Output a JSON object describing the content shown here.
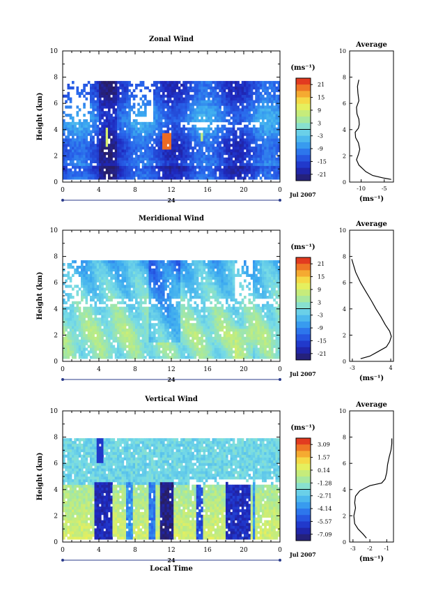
{
  "chart_data": [
    {
      "type": "heatmap",
      "title": "Zonal Wind",
      "ylabel": "Height (km)",
      "ylim": [
        0,
        10
      ],
      "yticks": [
        "0",
        "2",
        "4",
        "6",
        "8",
        "10"
      ],
      "xlim": [
        0,
        24
      ],
      "xticks": [
        "0",
        "4",
        "8",
        "12",
        "16",
        "20",
        "0"
      ],
      "day_label": "24",
      "month_label": "Jul 2007",
      "colorbar": {
        "unit": "(ms⁻¹)",
        "ticks": [
          "21",
          "15",
          "9",
          "3",
          "-3",
          "-9",
          "-15",
          "-21"
        ],
        "range": [
          -24,
          24
        ]
      },
      "profile": {
        "title": "Average",
        "xlabel": "(ms⁻¹)",
        "xticks": [
          "-10",
          "-5"
        ],
        "xlim": [
          -12.5,
          -3
        ],
        "points": [
          [
            -3.5,
            0.2
          ],
          [
            -5,
            0.3
          ],
          [
            -7.5,
            0.5
          ],
          [
            -9,
            0.8
          ],
          [
            -10.5,
            1.3
          ],
          [
            -11,
            1.7
          ],
          [
            -10.6,
            2.1
          ],
          [
            -10.3,
            2.5
          ],
          [
            -10.6,
            3.0
          ],
          [
            -11.2,
            3.4
          ],
          [
            -11.3,
            3.8
          ],
          [
            -10.6,
            4.1
          ],
          [
            -10.4,
            4.4
          ],
          [
            -10.5,
            4.8
          ],
          [
            -10.9,
            5.2
          ],
          [
            -11.0,
            5.7
          ],
          [
            -10.5,
            6.2
          ],
          [
            -10.7,
            6.8
          ],
          [
            -10.8,
            7.3
          ],
          [
            -10.5,
            7.8
          ]
        ]
      },
      "model": "zonal"
    },
    {
      "type": "heatmap",
      "title": "Meridional Wind",
      "ylabel": "Height (km)",
      "ylim": [
        0,
        10
      ],
      "yticks": [
        "0",
        "2",
        "4",
        "6",
        "8",
        "10"
      ],
      "xlim": [
        0,
        24
      ],
      "xticks": [
        "0",
        "4",
        "8",
        "12",
        "16",
        "20",
        "0"
      ],
      "day_label": "24",
      "month_label": "Jul 2007",
      "colorbar": {
        "unit": "(ms⁻¹)",
        "ticks": [
          "21",
          "15",
          "9",
          "3",
          "-3",
          "-9",
          "-15",
          "-21"
        ],
        "range": [
          -24,
          24
        ]
      },
      "profile": {
        "title": "Average",
        "xlabel": "(ms⁻¹)",
        "xticks": [
          "-3",
          "4"
        ],
        "xlim": [
          -3.5,
          4.5
        ],
        "points": [
          [
            -1.5,
            0.2
          ],
          [
            0.2,
            0.4
          ],
          [
            1.5,
            0.7
          ],
          [
            3.2,
            1.1
          ],
          [
            3.8,
            1.5
          ],
          [
            4.1,
            1.9
          ],
          [
            3.8,
            2.3
          ],
          [
            3.0,
            2.8
          ],
          [
            2.2,
            3.4
          ],
          [
            1.3,
            4.0
          ],
          [
            0.5,
            4.6
          ],
          [
            -0.5,
            5.3
          ],
          [
            -1.5,
            6.0
          ],
          [
            -2.4,
            6.8
          ],
          [
            -2.9,
            7.5
          ],
          [
            -3.1,
            7.8
          ]
        ]
      },
      "model": "meridional"
    },
    {
      "type": "heatmap",
      "title": "Vertical Wind",
      "ylabel": "Height (km)",
      "xlabel": "Local Time",
      "ylim": [
        0,
        10
      ],
      "yticks": [
        "0",
        "2",
        "4",
        "6",
        "8",
        "10"
      ],
      "xlim": [
        0,
        24
      ],
      "xticks": [
        "0",
        "4",
        "8",
        "12",
        "16",
        "20",
        "0"
      ],
      "day_label": "24",
      "month_label": "Jul 2007",
      "colorbar": {
        "unit": "(ms⁻¹)",
        "ticks": [
          "3.09",
          "1.57",
          "0.14",
          "-1.28",
          "-2.71",
          "-4.14",
          "-5.57",
          "-7.09"
        ],
        "range": [
          -7.8,
          3.8
        ]
      },
      "profile": {
        "title": "Average",
        "xlabel": "(ms⁻¹)",
        "xticks": [
          "-3",
          "-2",
          "-1"
        ],
        "xlim": [
          -3.2,
          -0.6
        ],
        "points": [
          [
            -2.2,
            0.3
          ],
          [
            -2.4,
            0.6
          ],
          [
            -2.7,
            1.0
          ],
          [
            -2.9,
            1.4
          ],
          [
            -2.95,
            2.0
          ],
          [
            -2.85,
            2.6
          ],
          [
            -2.9,
            3.0
          ],
          [
            -2.85,
            3.5
          ],
          [
            -2.6,
            3.9
          ],
          [
            -2.3,
            4.1
          ],
          [
            -2.0,
            4.3
          ],
          [
            -1.3,
            4.5
          ],
          [
            -1.1,
            4.8
          ],
          [
            -1.0,
            5.3
          ],
          [
            -0.95,
            5.9
          ],
          [
            -0.85,
            6.5
          ],
          [
            -0.75,
            7.0
          ],
          [
            -0.7,
            7.5
          ],
          [
            -0.7,
            7.9
          ]
        ]
      },
      "model": "vertical"
    }
  ]
}
